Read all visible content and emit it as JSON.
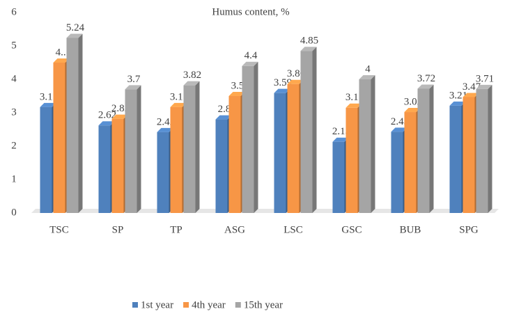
{
  "chart_data": {
    "type": "bar3d",
    "title": "Humus content, %",
    "categories": [
      "TSC",
      "SP",
      "TP",
      "ASG",
      "LSC",
      "GSC",
      "BUB",
      "SPG"
    ],
    "series": [
      {
        "name": "1st year",
        "color": "#4f81bd",
        "values": [
          3.17,
          2.62,
          2.42,
          2.8,
          3.59,
          2.13,
          2.43,
          3.21
        ]
      },
      {
        "name": "4th year",
        "color": "#f79646",
        "values": [
          4.5,
          2.82,
          3.17,
          3.5,
          3.86,
          3.15,
          3.02,
          3.47
        ],
        "value_labels": [
          "4...",
          "2.82",
          "3.17",
          "3.5",
          "3.86",
          "3.15",
          "3.02",
          "3.47"
        ]
      },
      {
        "name": "15th year",
        "color": "#a5a5a5",
        "values": [
          5.24,
          3.7,
          3.82,
          4.4,
          4.85,
          4,
          3.72,
          3.71
        ]
      }
    ],
    "ylim": [
      0,
      6
    ],
    "yticks": [
      0,
      1,
      2,
      3,
      4,
      5,
      6
    ],
    "legend": "bottom"
  }
}
